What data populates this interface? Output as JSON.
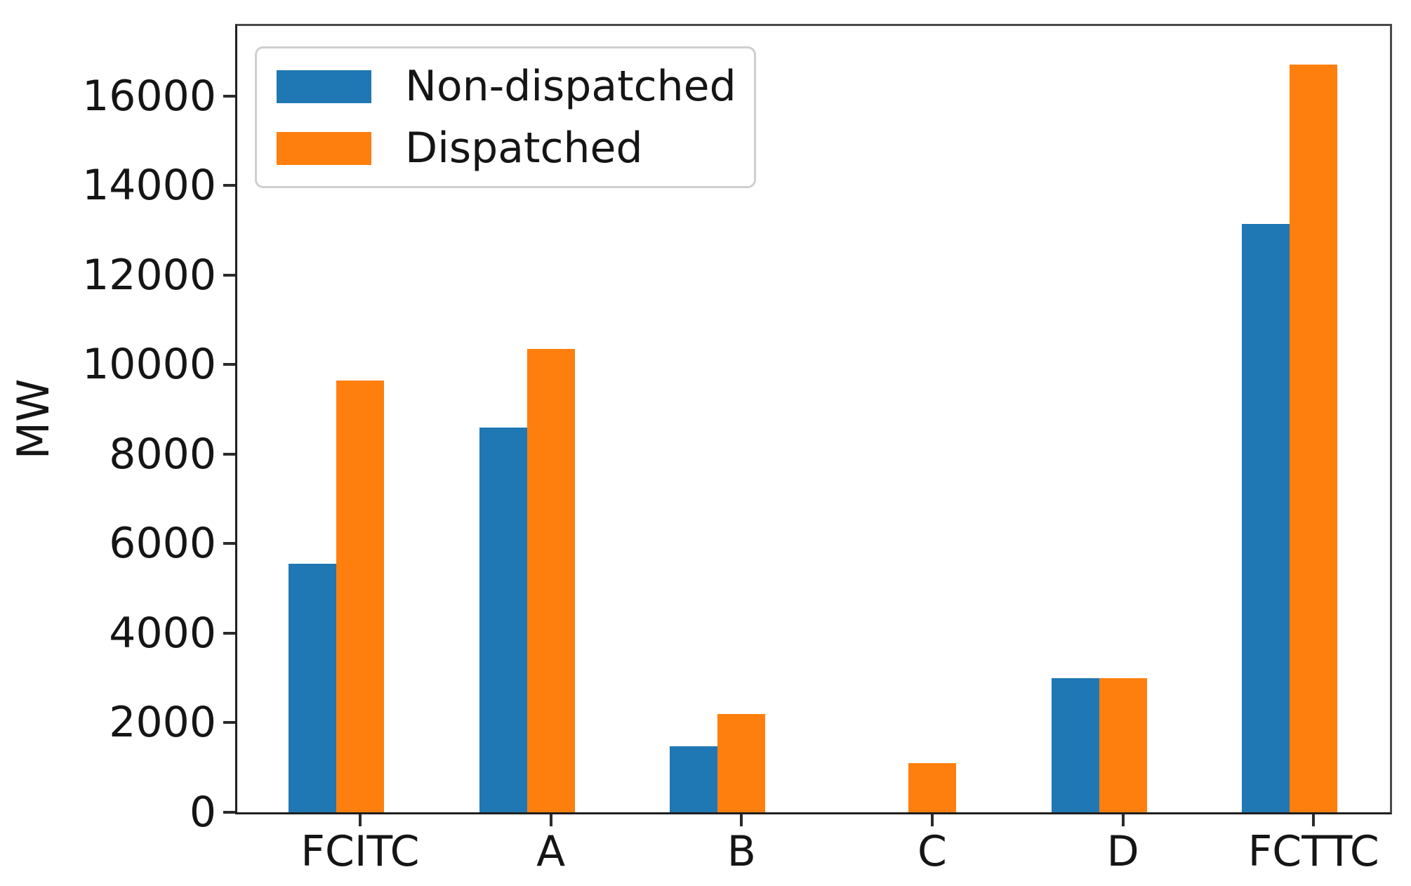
{
  "chart_data": {
    "type": "bar",
    "title": "",
    "xlabel": "",
    "ylabel": "MW",
    "categories": [
      "FCITC",
      "A",
      "B",
      "C",
      "D",
      "FCTTC"
    ],
    "series": [
      {
        "name": "Non-dispatched",
        "color": "#1f77b4",
        "values": [
          5550,
          8600,
          1470,
          0,
          3000,
          13150
        ]
      },
      {
        "name": "Dispatched",
        "color": "#ff7f0e",
        "values": [
          9650,
          10350,
          2200,
          1100,
          3000,
          16700
        ]
      }
    ],
    "ylim": [
      0,
      17565
    ],
    "yticks": [
      0,
      2000,
      4000,
      6000,
      8000,
      10000,
      12000,
      14000,
      16000
    ],
    "ytick_labels": [
      "0",
      "2000",
      "4000",
      "6000",
      "8000",
      "10000",
      "12000",
      "14000",
      "16000"
    ],
    "legend_position": "upper left",
    "grid": false,
    "bar_group_note": "blue bar absent for category C; blue and orange equal for category D"
  }
}
